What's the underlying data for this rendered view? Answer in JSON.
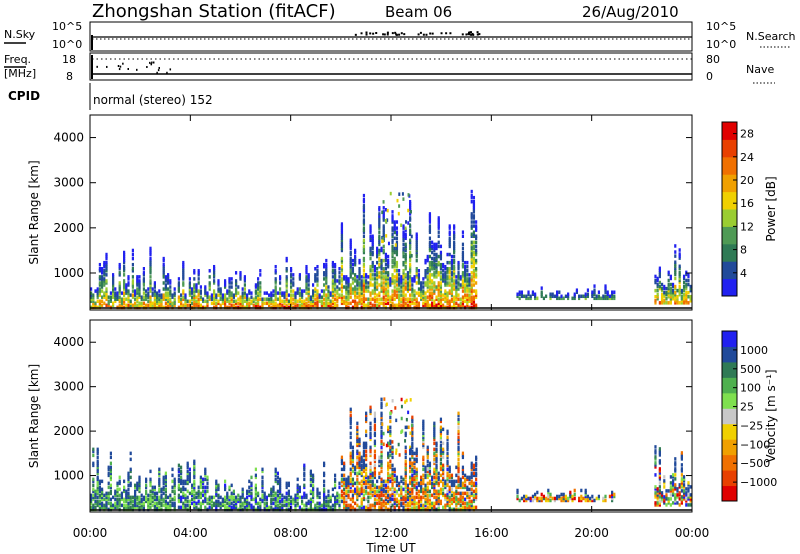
{
  "header": {
    "station": "Zhongshan Station (fitACF)",
    "beam": "Beam 06",
    "date": "26/Aug/2010"
  },
  "top_panels": {
    "nsky_label": "N.Sky",
    "nsky_ticks": [
      "10^5",
      "10^0"
    ],
    "nsearch_label": "N.Search",
    "nsearch_ticks": [
      "10^5",
      "10^0"
    ],
    "freq_label": "Freq.",
    "freq_unit": "[MHz]",
    "freq_ticks": [
      "18",
      "8"
    ],
    "nave_label": "Nave",
    "nave_ticks": [
      "80",
      "0"
    ],
    "cpid_label": "CPID",
    "cpid_value": "normal (stereo) 152"
  },
  "colors": {
    "power_scale": [
      "#2121f0",
      "#214a9a",
      "#2f7a55",
      "#4f9a55",
      "#9acd32",
      "#f0d000",
      "#f0a000",
      "#f07000",
      "#e84000",
      "#e00000"
    ],
    "velocity_scale": [
      "#2121f0",
      "#214a9a",
      "#2f7a55",
      "#4fb04f",
      "#7fe04f",
      "#c8c8c8",
      "#f0d000",
      "#f0a000",
      "#f07000",
      "#e84000",
      "#e00000"
    ]
  },
  "chart_data": [
    {
      "type": "heatmap",
      "title": "",
      "xlabel": "",
      "ylabel": "Slant Range [km]",
      "xlim": [
        "00:00",
        "00:00"
      ],
      "x_ticks": [
        "00:00",
        "04:00",
        "08:00",
        "12:00",
        "16:00",
        "20:00",
        "00:00"
      ],
      "ylim": [
        180,
        4500
      ],
      "y_ticks": [
        1000,
        2000,
        3000,
        4000
      ],
      "colorbar": {
        "label": "Power [dB]",
        "ticks": [
          4,
          8,
          12,
          16,
          20,
          24,
          28
        ],
        "range": [
          0,
          30
        ]
      },
      "echo_regions": [
        {
          "time_hours": [
            0.0,
            3.5
          ],
          "range_km": [
            200,
            1600
          ],
          "peak_db": 24
        },
        {
          "time_hours": [
            3.5,
            10.0
          ],
          "range_km": [
            200,
            1300
          ],
          "peak_db": 28
        },
        {
          "time_hours": [
            10.0,
            15.5
          ],
          "range_km": [
            200,
            2800
          ],
          "peak_db": 28
        },
        {
          "time_hours": [
            17.0,
            21.0
          ],
          "range_km": [
            400,
            700
          ],
          "peak_db": 12
        },
        {
          "time_hours": [
            22.5,
            24.0
          ],
          "range_km": [
            300,
            1800
          ],
          "peak_db": 24
        }
      ]
    },
    {
      "type": "heatmap",
      "title": "",
      "xlabel": "Time UT",
      "ylabel": "Slant Range [km]",
      "xlim": [
        "00:00",
        "00:00"
      ],
      "x_ticks": [
        "00:00",
        "04:00",
        "08:00",
        "12:00",
        "16:00",
        "20:00",
        "00:00"
      ],
      "ylim": [
        180,
        4500
      ],
      "y_ticks": [
        1000,
        2000,
        3000,
        4000
      ],
      "colorbar": {
        "label": "Velocity [m s⁻¹]",
        "ticks": [
          "1000",
          "500",
          "100",
          "25",
          "−25",
          "−100",
          "−500",
          "−1000"
        ]
      },
      "echo_regions": [
        {
          "time_hours": [
            0.0,
            3.5
          ],
          "range_km": [
            200,
            1600
          ],
          "dominant_velocity": "100 to 500"
        },
        {
          "time_hours": [
            3.5,
            10.0
          ],
          "range_km": [
            200,
            1300
          ],
          "dominant_velocity": "100 to 1000"
        },
        {
          "time_hours": [
            10.0,
            15.5
          ],
          "range_km": [
            200,
            2800
          ],
          "dominant_velocity": "-100 to -500"
        },
        {
          "time_hours": [
            17.0,
            21.0
          ],
          "range_km": [
            400,
            700
          ],
          "dominant_velocity": "-100 to -500"
        },
        {
          "time_hours": [
            22.5,
            24.0
          ],
          "range_km": [
            300,
            1800
          ],
          "dominant_velocity": "-25 to -500"
        }
      ]
    }
  ]
}
